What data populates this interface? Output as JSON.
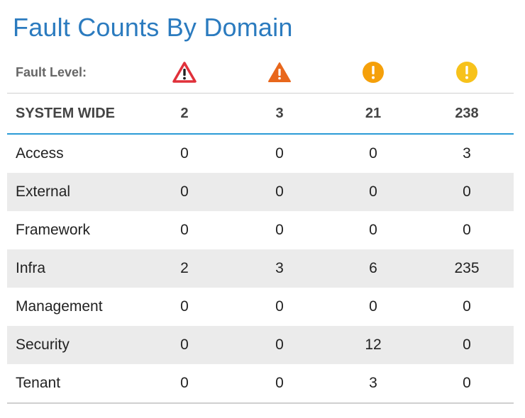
{
  "title": "Fault Counts By Domain",
  "header": {
    "label": "Fault Level:",
    "icons": [
      "critical-warning-icon",
      "major-warning-icon",
      "minor-exclamation-icon",
      "warning-exclamation-icon"
    ],
    "colors": {
      "critical": "#e0303a",
      "major": "#e8671c",
      "minor": "#f5a00a",
      "warning": "#f7c21b"
    }
  },
  "summary": {
    "label": "SYSTEM WIDE",
    "values": [
      "2",
      "3",
      "21",
      "238"
    ]
  },
  "rows": [
    {
      "label": "Access",
      "values": [
        "0",
        "0",
        "0",
        "3"
      ]
    },
    {
      "label": "External",
      "values": [
        "0",
        "0",
        "0",
        "0"
      ]
    },
    {
      "label": "Framework",
      "values": [
        "0",
        "0",
        "0",
        "0"
      ]
    },
    {
      "label": "Infra",
      "values": [
        "2",
        "3",
        "6",
        "235"
      ]
    },
    {
      "label": "Management",
      "values": [
        "0",
        "0",
        "0",
        "0"
      ]
    },
    {
      "label": "Security",
      "values": [
        "0",
        "0",
        "12",
        "0"
      ]
    },
    {
      "label": "Tenant",
      "values": [
        "0",
        "0",
        "3",
        "0"
      ]
    }
  ]
}
